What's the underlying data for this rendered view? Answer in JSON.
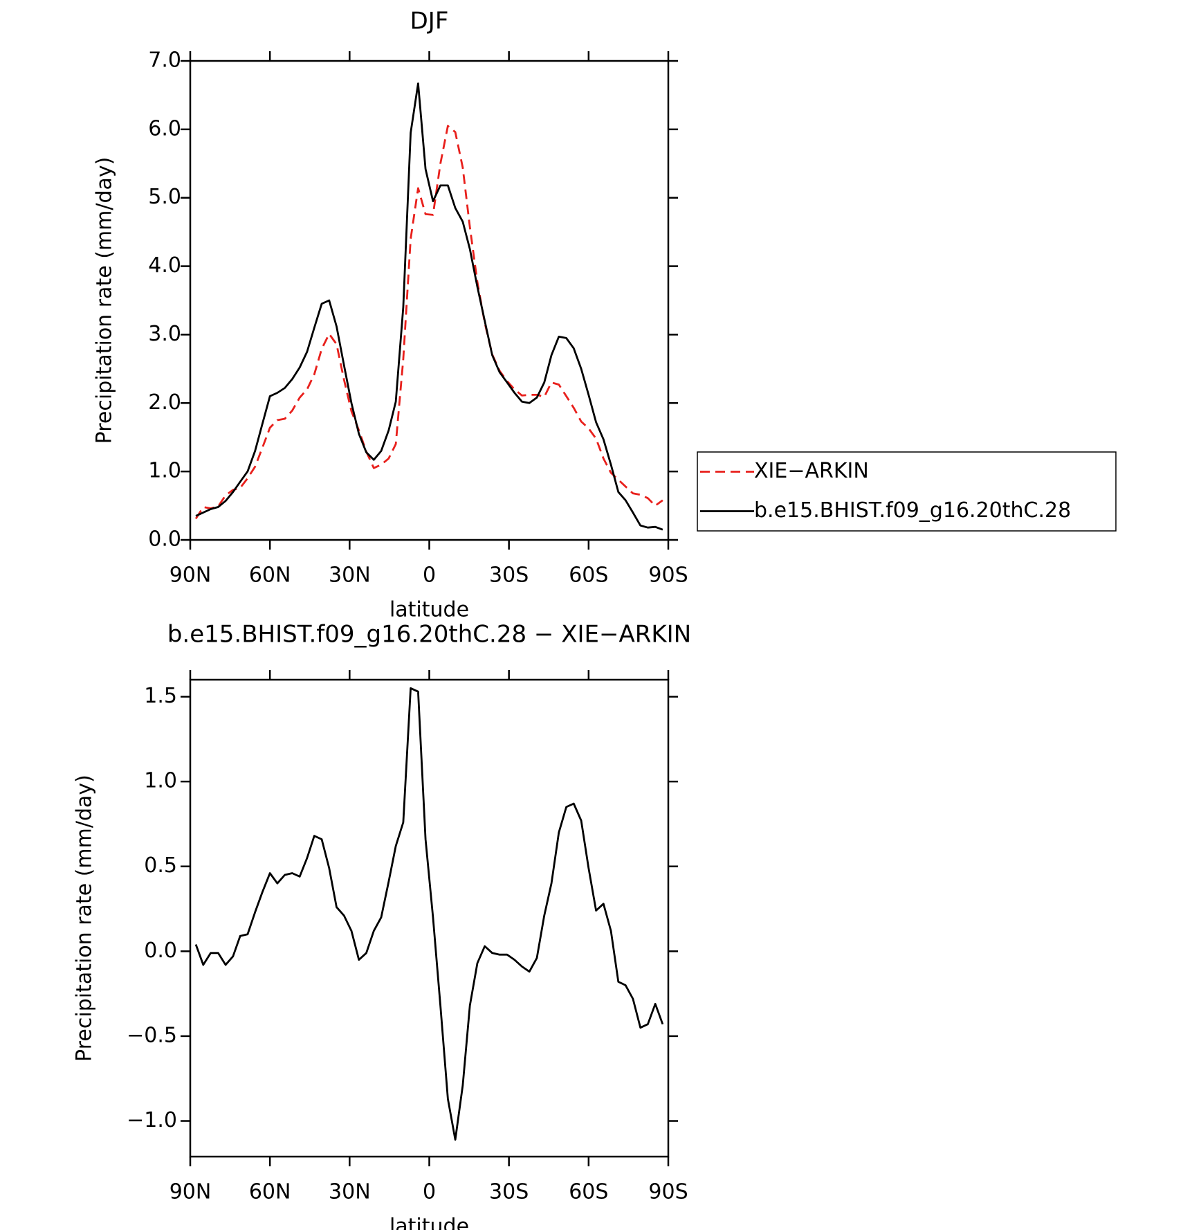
{
  "chart_data": [
    {
      "type": "line",
      "title": "DJF",
      "xlabel": "latitude",
      "ylabel": "Precipitation rate (mm/day)",
      "x": [
        87.9,
        85.1,
        82.3,
        79.5,
        76.7,
        73.9,
        71.2,
        68.4,
        65.6,
        62.8,
        60.0,
        57.2,
        54.4,
        51.6,
        48.8,
        46.0,
        43.3,
        40.5,
        37.7,
        34.9,
        32.1,
        29.3,
        26.5,
        23.7,
        20.9,
        18.1,
        15.3,
        12.6,
        9.8,
        7.0,
        4.2,
        1.4,
        -1.4,
        -4.2,
        -7.0,
        -9.8,
        -12.6,
        -15.3,
        -18.1,
        -20.9,
        -23.7,
        -26.5,
        -29.3,
        -32.1,
        -34.9,
        -37.7,
        -40.5,
        -43.3,
        -46.0,
        -48.8,
        -51.6,
        -54.4,
        -57.2,
        -60.0,
        -62.8,
        -65.6,
        -68.4,
        -71.2,
        -73.9,
        -76.7,
        -79.5,
        -82.3,
        -85.1,
        -87.9
      ],
      "series": [
        {
          "name": "XIE−ARKIN",
          "color": "#e8201c",
          "style": "dashed",
          "values": [
            0.31,
            0.48,
            0.46,
            0.49,
            0.65,
            0.73,
            0.76,
            0.9,
            1.07,
            1.35,
            1.64,
            1.75,
            1.77,
            1.89,
            2.08,
            2.2,
            2.42,
            2.79,
            3.01,
            2.86,
            2.34,
            1.88,
            1.6,
            1.29,
            1.05,
            1.1,
            1.19,
            1.4,
            2.64,
            4.4,
            5.14,
            4.76,
            4.75,
            5.5,
            6.05,
            5.96,
            5.44,
            4.57,
            3.77,
            3.17,
            2.71,
            2.47,
            2.32,
            2.2,
            2.11,
            2.12,
            2.12,
            2.09,
            2.3,
            2.27,
            2.1,
            1.93,
            1.73,
            1.63,
            1.48,
            1.19,
            0.98,
            0.88,
            0.78,
            0.68,
            0.66,
            0.61,
            0.5,
            0.58
          ]
        },
        {
          "name": "b.e15.BHIST.f09_g16.20thC.28",
          "color": "#000000",
          "style": "solid",
          "values": [
            0.35,
            0.4,
            0.45,
            0.48,
            0.57,
            0.7,
            0.85,
            1.0,
            1.3,
            1.7,
            2.1,
            2.15,
            2.22,
            2.35,
            2.52,
            2.75,
            3.1,
            3.45,
            3.5,
            3.12,
            2.55,
            2.0,
            1.55,
            1.28,
            1.17,
            1.3,
            1.6,
            2.02,
            3.4,
            5.95,
            6.67,
            5.42,
            4.95,
            5.18,
            5.18,
            4.85,
            4.65,
            4.25,
            3.7,
            3.2,
            2.7,
            2.45,
            2.3,
            2.15,
            2.02,
            2.0,
            2.08,
            2.3,
            2.7,
            2.97,
            2.95,
            2.8,
            2.5,
            2.12,
            1.72,
            1.47,
            1.1,
            0.7,
            0.58,
            0.4,
            0.21,
            0.18,
            0.19,
            0.15
          ]
        }
      ],
      "xlim": [
        90,
        -90
      ],
      "xticks": [
        {
          "value": 90,
          "label": "90N"
        },
        {
          "value": 60,
          "label": "60N"
        },
        {
          "value": 30,
          "label": "30N"
        },
        0,
        {
          "value": -30,
          "label": "30S"
        },
        {
          "value": -60,
          "label": "60S"
        },
        {
          "value": -90,
          "label": "90S"
        }
      ],
      "ylim": [
        0,
        7
      ],
      "yticks": [
        {
          "value": 0,
          "label": "0.0"
        },
        {
          "value": 1,
          "label": "1.0"
        },
        {
          "value": 2,
          "label": "2.0"
        },
        {
          "value": 3,
          "label": "3.0"
        },
        {
          "value": 4,
          "label": "4.0"
        },
        {
          "value": 5,
          "label": "5.0"
        },
        {
          "value": 6,
          "label": "6.0"
        },
        {
          "value": 7,
          "label": "7.0"
        }
      ],
      "legend": "right"
    },
    {
      "type": "line",
      "title": "b.e15.BHIST.f09_g16.20thC.28 − XIE−ARKIN",
      "xlabel": "latitude",
      "ylabel": "Precipitation rate (mm/day)",
      "x": [
        87.9,
        85.1,
        82.3,
        79.5,
        76.7,
        73.9,
        71.2,
        68.4,
        65.6,
        62.8,
        60.0,
        57.2,
        54.4,
        51.6,
        48.8,
        46.0,
        43.3,
        40.5,
        37.7,
        34.9,
        32.1,
        29.3,
        26.5,
        23.7,
        20.9,
        18.1,
        15.3,
        12.6,
        9.8,
        7.0,
        4.2,
        1.4,
        -1.4,
        -4.2,
        -7.0,
        -9.8,
        -12.6,
        -15.3,
        -18.1,
        -20.9,
        -23.7,
        -26.5,
        -29.3,
        -32.1,
        -34.9,
        -37.7,
        -40.5,
        -43.3,
        -46.0,
        -48.8,
        -51.6,
        -54.4,
        -57.2,
        -60.0,
        -62.8,
        -65.6,
        -68.4,
        -71.2,
        -73.9,
        -76.7,
        -79.5,
        -82.3,
        -85.1,
        -87.9
      ],
      "color": "#000000",
      "values": [
        0.04,
        -0.08,
        -0.01,
        -0.01,
        -0.08,
        -0.03,
        0.09,
        0.1,
        0.23,
        0.35,
        0.46,
        0.4,
        0.45,
        0.46,
        0.44,
        0.55,
        0.68,
        0.66,
        0.49,
        0.26,
        0.21,
        0.12,
        -0.05,
        -0.01,
        0.12,
        0.2,
        0.41,
        0.62,
        0.76,
        1.55,
        1.53,
        0.66,
        0.2,
        -0.32,
        -0.87,
        -1.11,
        -0.79,
        -0.32,
        -0.07,
        0.03,
        -0.01,
        -0.02,
        -0.02,
        -0.05,
        -0.09,
        -0.12,
        -0.04,
        0.21,
        0.4,
        0.7,
        0.85,
        0.87,
        0.77,
        0.49,
        0.24,
        0.28,
        0.12,
        -0.18,
        -0.2,
        -0.28,
        -0.45,
        -0.43,
        -0.31,
        -0.43
      ],
      "xlim": [
        90,
        -90
      ],
      "xticks": [
        {
          "value": 90,
          "label": "90N"
        },
        {
          "value": 60,
          "label": "60N"
        },
        {
          "value": 30,
          "label": "30N"
        },
        0,
        {
          "value": -30,
          "label": "30S"
        },
        {
          "value": -60,
          "label": "60S"
        },
        {
          "value": -90,
          "label": "90S"
        }
      ],
      "ylim": [
        -1.21,
        1.6
      ],
      "yticks": [
        {
          "value": -1,
          "label": "−1.0"
        },
        {
          "value": -0.5,
          "label": "−0.5"
        },
        {
          "value": 0,
          "label": "0.0"
        },
        0.5,
        {
          "value": 1,
          "label": "1.0"
        },
        1.5
      ]
    }
  ]
}
